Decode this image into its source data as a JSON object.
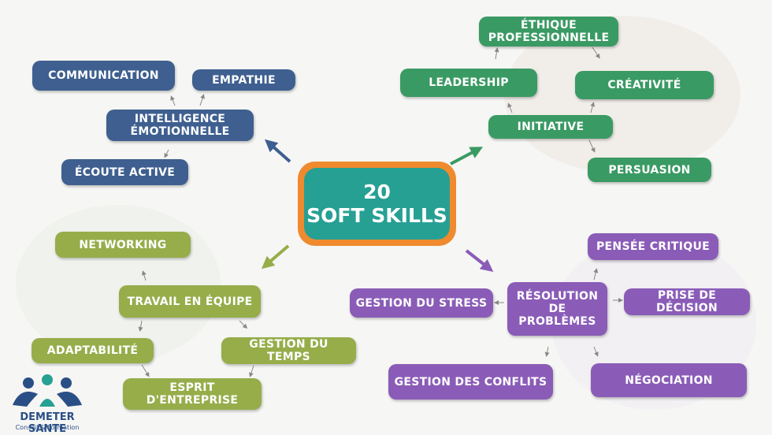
{
  "center": {
    "line1": "20",
    "line2": "SOFT SKILLS"
  },
  "blue": {
    "communication": "COMMUNICATION",
    "empathie": "EMPATHIE",
    "intelligence": "INTELLIGENCE ÉMOTIONNELLE",
    "ecoute": "ÉCOUTE ACTIVE"
  },
  "green": {
    "ethique": "ÉTHIQUE PROFESSIONNELLE",
    "leadership": "LEADERSHIP",
    "creativite": "CRÉATIVITÉ",
    "initiative": "INITIATIVE",
    "persuasion": "PERSUASION"
  },
  "olive": {
    "networking": "NETWORKING",
    "travail": "TRAVAIL EN ÉQUIPE",
    "adaptabilite": "ADAPTABILITÉ",
    "gestion_temps": "GESTION DU TEMPS",
    "esprit": "ESPRIT D'ENTREPRISE"
  },
  "purple": {
    "pensee": "PENSÉE CRITIQUE",
    "stress": "GESTION DU STRESS",
    "resolution": "RÉSOLUTION DE PROBLÈMES",
    "decision": "PRISE DE DÉCISION",
    "conflits": "GESTION DES CONFLITS",
    "negociation": "NÉGOCIATION"
  },
  "logo": {
    "name": "DEMETER SANTE",
    "tagline": "Conseil & Formation"
  },
  "colors": {
    "blue": "#3e5f8f",
    "green": "#3a9a63",
    "olive": "#96ad4a",
    "purple": "#8a5cb7",
    "orange": "#ef8a2e",
    "teal": "#27a094"
  }
}
